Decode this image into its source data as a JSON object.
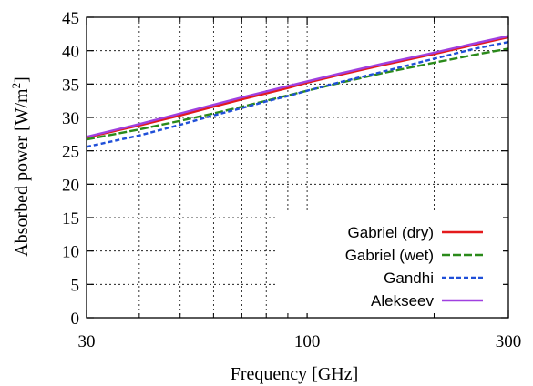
{
  "chart_data": {
    "type": "line",
    "xlabel": "Frequency [GHz]",
    "ylabel": "Absorbed power [W/m",
    "ylabel_sup": "2",
    "ylabel_end": "]",
    "xscale": "log",
    "xlim": [
      30,
      300
    ],
    "ylim": [
      0,
      45
    ],
    "grid": true,
    "legend_position": "bottom-right",
    "x_ticks": [
      30,
      100,
      300
    ],
    "x_tick_labels": [
      "30",
      "100",
      "300"
    ],
    "x_minor_ticks": [
      40,
      50,
      60,
      70,
      80,
      90,
      200
    ],
    "y_ticks": [
      0,
      5,
      10,
      15,
      20,
      25,
      30,
      35,
      40,
      45
    ],
    "y_tick_labels": [
      "0",
      "5",
      "10",
      "15",
      "20",
      "25",
      "30",
      "35",
      "40",
      "45"
    ],
    "series": [
      {
        "name": "Gabriel (dry)",
        "color": "#e41a1c",
        "dash": "solid",
        "x": [
          30,
          40,
          50,
          60,
          70,
          80,
          90,
          100,
          120,
          150,
          200,
          250,
          300
        ],
        "y": [
          27.0,
          28.8,
          30.3,
          31.6,
          32.7,
          33.6,
          34.4,
          35.2,
          36.4,
          37.8,
          39.5,
          40.9,
          42.0
        ]
      },
      {
        "name": "Gabriel (wet)",
        "color": "#2a8a1a",
        "dash": "dashed",
        "x": [
          30,
          40,
          50,
          60,
          70,
          80,
          90,
          100,
          120,
          150,
          200,
          250,
          300
        ],
        "y": [
          26.7,
          28.2,
          29.5,
          30.6,
          31.6,
          32.5,
          33.3,
          34.0,
          35.2,
          36.6,
          38.2,
          39.4,
          40.3
        ]
      },
      {
        "name": "Gandhi",
        "color": "#1f4fd8",
        "dash": "dotted",
        "x": [
          30,
          40,
          50,
          60,
          70,
          80,
          90,
          100,
          120,
          150,
          200,
          250,
          300
        ],
        "y": [
          25.6,
          27.3,
          28.9,
          30.3,
          31.4,
          32.4,
          33.2,
          34.0,
          35.3,
          36.8,
          38.8,
          40.3,
          41.3
        ]
      },
      {
        "name": "Alekseev",
        "color": "#a040e0",
        "dash": "solid",
        "x": [
          30,
          40,
          50,
          60,
          70,
          80,
          90,
          100,
          120,
          150,
          200,
          250,
          300
        ],
        "y": [
          27.1,
          29.0,
          30.6,
          31.9,
          33.0,
          33.9,
          34.7,
          35.4,
          36.6,
          38.0,
          39.7,
          41.1,
          42.2
        ]
      }
    ]
  }
}
